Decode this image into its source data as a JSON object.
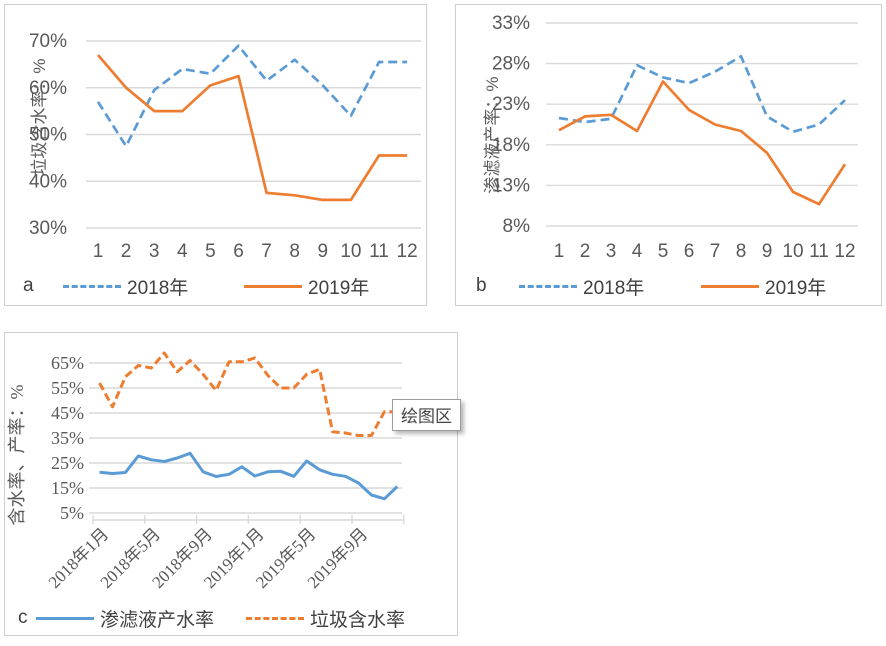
{
  "colors": {
    "series_blue": "#5B9BD5",
    "series_orange": "#ED7D31",
    "gridline": "#D9D9D9",
    "axis_text": "#595959",
    "legend_text": "#404040",
    "panel_border": "#CFCDCD"
  },
  "tooltip": {
    "text": "绘图区"
  },
  "chart_data": [
    {
      "id": "a",
      "panel_label": "a",
      "type": "line",
      "ylabel": "垃圾含水率：%",
      "y_ticks": [
        "70%",
        "60%",
        "50%",
        "40%",
        "30%"
      ],
      "y_max": 70,
      "y_min": 30,
      "y_step": 10,
      "grid": true,
      "legend_position": "bottom",
      "categories": [
        "1",
        "2",
        "3",
        "4",
        "5",
        "6",
        "7",
        "8",
        "9",
        "10",
        "11",
        "12"
      ],
      "series": [
        {
          "name": "2018年",
          "color": "#5B9BD5",
          "dash": true,
          "values": [
            57,
            47.5,
            59.5,
            64,
            63,
            69,
            61.5,
            66,
            60.5,
            54,
            65.5,
            65.5
          ]
        },
        {
          "name": "2019年",
          "color": "#ED7D31",
          "dash": false,
          "values": [
            67,
            60,
            55,
            55,
            60.5,
            62.5,
            37.5,
            37,
            36,
            36,
            45.5,
            45.5
          ]
        }
      ]
    },
    {
      "id": "b",
      "panel_label": "b",
      "type": "line",
      "ylabel": "渗滤液产率：%",
      "y_ticks": [
        "33%",
        "28%",
        "23%",
        "18%",
        "13%",
        "8%"
      ],
      "y_max": 33,
      "y_min": 8,
      "y_step": 5,
      "grid": true,
      "legend_position": "bottom",
      "categories": [
        "1",
        "2",
        "3",
        "4",
        "5",
        "6",
        "7",
        "8",
        "9",
        "10",
        "11",
        "12"
      ],
      "series": [
        {
          "name": "2018年",
          "color": "#5B9BD5",
          "dash": true,
          "values": [
            21.3,
            20.8,
            21.2,
            27.8,
            26.3,
            25.6,
            27,
            28.9,
            21.5,
            19.6,
            20.5,
            23.5
          ]
        },
        {
          "name": "2019年",
          "color": "#ED7D31",
          "dash": false,
          "values": [
            19.8,
            21.5,
            21.7,
            19.7,
            25.8,
            22.3,
            20.5,
            19.7,
            17,
            12.2,
            10.7,
            15.6
          ]
        }
      ]
    },
    {
      "id": "c",
      "panel_label": "c",
      "type": "line",
      "ylabel": "含水率、产率：%",
      "y_ticks": [
        "65%",
        "55%",
        "45%",
        "35%",
        "25%",
        "15%",
        "5%"
      ],
      "y_max": 65,
      "y_min": 5,
      "y_step": 10,
      "grid": true,
      "legend_position": "bottom",
      "x_count": 24,
      "x_tick_labels": [
        "2018年1月",
        "2018年5月",
        "2018年9月",
        "2019年1月",
        "2019年5月",
        "2019年9月"
      ],
      "x_tick_positions": [
        1,
        5,
        9,
        13,
        17,
        21
      ],
      "series": [
        {
          "name": "渗滤液产水率",
          "color": "#5B9BD5",
          "dash": false,
          "values": [
            21.3,
            20.8,
            21.2,
            27.8,
            26.3,
            25.6,
            27,
            28.9,
            21.5,
            19.6,
            20.5,
            23.5,
            19.8,
            21.5,
            21.7,
            19.7,
            25.8,
            22.3,
            20.5,
            19.7,
            17,
            12.2,
            10.7,
            15.6
          ]
        },
        {
          "name": "垃圾含水率",
          "color": "#ED7D31",
          "dash": true,
          "values": [
            57,
            47.5,
            59.5,
            64,
            63,
            69,
            61.5,
            66,
            60.5,
            54,
            65.5,
            65.5,
            67,
            60,
            55,
            55,
            60.5,
            62.5,
            37.5,
            37,
            36,
            36,
            45.5,
            45.5
          ]
        }
      ]
    }
  ]
}
